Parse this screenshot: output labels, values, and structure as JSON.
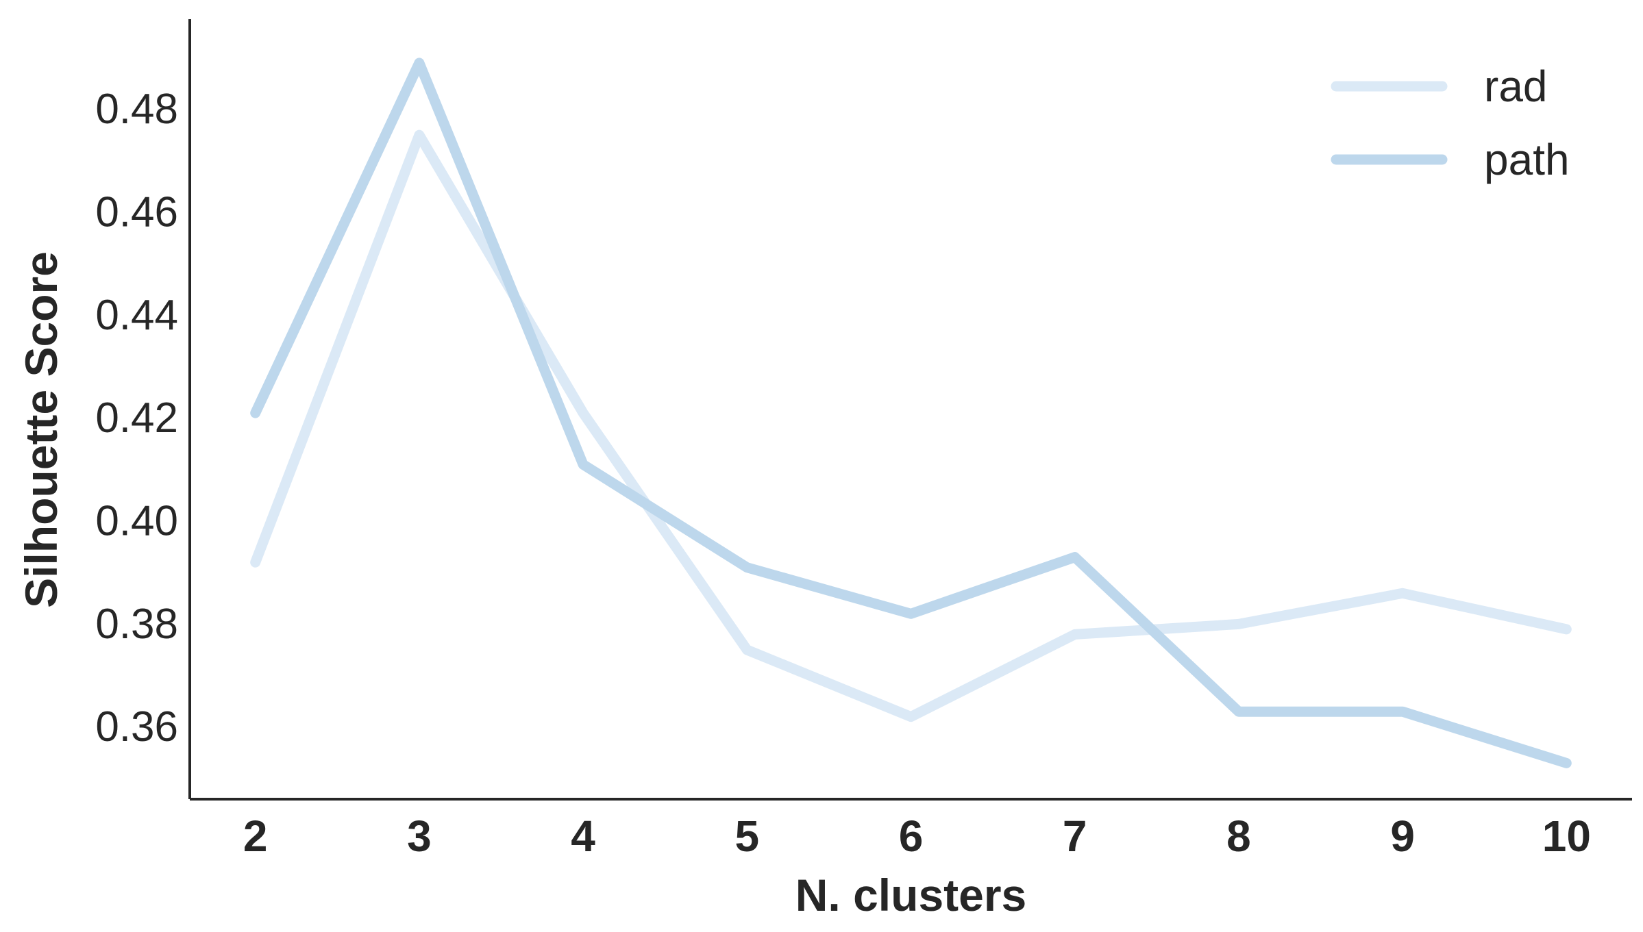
{
  "chart_data": {
    "type": "line",
    "title": "",
    "xlabel": "N. clusters",
    "ylabel": "Silhouette Score",
    "x": [
      2,
      3,
      4,
      5,
      6,
      7,
      8,
      9,
      10
    ],
    "x_tick_labels": [
      "2",
      "3",
      "4",
      "5",
      "6",
      "7",
      "8",
      "9",
      "10"
    ],
    "y_ticks": [
      0.36,
      0.38,
      0.4,
      0.42,
      0.44,
      0.46,
      0.48
    ],
    "y_tick_labels": [
      "0.36",
      "0.38",
      "0.40",
      "0.42",
      "0.44",
      "0.46",
      "0.48"
    ],
    "xlim": [
      1.6,
      10.4
    ],
    "ylim": [
      0.346,
      0.4975
    ],
    "grid": false,
    "legend_position": "top-right",
    "series": [
      {
        "name": "rad",
        "color": "#dbe9f6",
        "values": [
          0.392,
          0.475,
          0.421,
          0.375,
          0.362,
          0.378,
          0.38,
          0.386,
          0.379
        ]
      },
      {
        "name": "path",
        "color": "#bdd7ec",
        "values": [
          0.421,
          0.489,
          0.411,
          0.391,
          0.382,
          0.393,
          0.363,
          0.363,
          0.353
        ]
      }
    ]
  }
}
